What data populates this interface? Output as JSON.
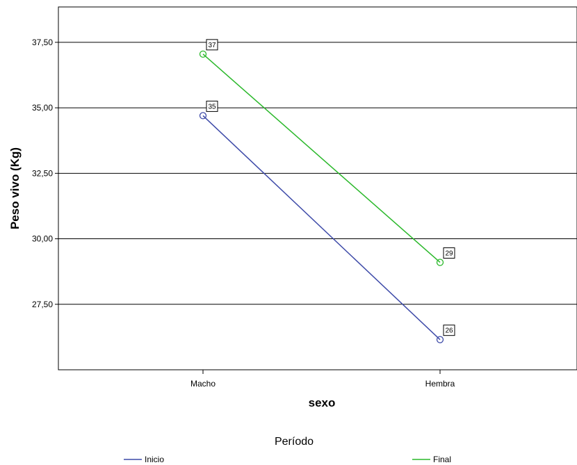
{
  "chart_data": {
    "type": "line",
    "categories": [
      "Macho",
      "Hembra"
    ],
    "series": [
      {
        "name": "Inicio",
        "values": [
          34.7,
          26.15
        ],
        "color": "#3d4aa8",
        "point_labels": [
          "35",
          "26"
        ]
      },
      {
        "name": "Final",
        "values": [
          37.05,
          29.1
        ],
        "color": "#2ab82a",
        "point_labels": [
          "37",
          "29"
        ]
      }
    ],
    "xlabel": "sexo",
    "ylabel": "Peso vivo (Kg)",
    "ylim": [
      25.0,
      38.85
    ],
    "yticks": [
      27.5,
      30.0,
      32.5,
      35.0,
      37.5
    ],
    "ytick_labels": [
      "27,50",
      "30,00",
      "32,50",
      "35,00",
      "37,50"
    ],
    "grid": true,
    "legend_title": "Período",
    "legend_position": "bottom",
    "marker": "open-circle"
  }
}
